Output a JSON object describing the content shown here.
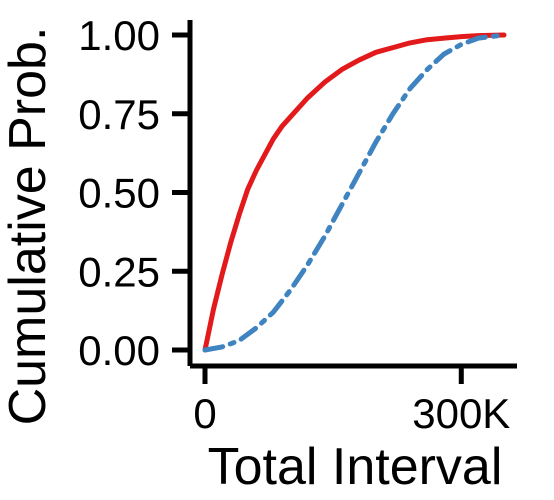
{
  "chart_data": {
    "type": "line",
    "title": "",
    "xlabel": "Total Interval",
    "ylabel": "Cumulative Prob.",
    "xlim": [
      0,
      350000
    ],
    "ylim": [
      0,
      1
    ],
    "x_ticks": [
      {
        "value": 0,
        "label": "0"
      },
      {
        "value": 300000,
        "label": "300K"
      }
    ],
    "y_ticks": [
      {
        "value": 0.0,
        "label": "0.00"
      },
      {
        "value": 0.25,
        "label": "0.25"
      },
      {
        "value": 0.5,
        "label": "0.50"
      },
      {
        "value": 0.75,
        "label": "0.75"
      },
      {
        "value": 1.0,
        "label": "1.00"
      }
    ],
    "grid": false,
    "legend": "none",
    "series": [
      {
        "color": "#e31a1c",
        "style": "solid",
        "points": [
          [
            0,
            0.0
          ],
          [
            10000,
            0.13
          ],
          [
            20000,
            0.24
          ],
          [
            30000,
            0.34
          ],
          [
            40000,
            0.43
          ],
          [
            50000,
            0.51
          ],
          [
            60000,
            0.57
          ],
          [
            70000,
            0.62
          ],
          [
            80000,
            0.67
          ],
          [
            90000,
            0.71
          ],
          [
            100000,
            0.74
          ],
          [
            120000,
            0.8
          ],
          [
            140000,
            0.85
          ],
          [
            160000,
            0.89
          ],
          [
            180000,
            0.92
          ],
          [
            200000,
            0.945
          ],
          [
            220000,
            0.96
          ],
          [
            240000,
            0.975
          ],
          [
            260000,
            0.985
          ],
          [
            280000,
            0.99
          ],
          [
            300000,
            0.995
          ],
          [
            320000,
            0.998
          ],
          [
            350000,
            1.0
          ]
        ]
      },
      {
        "color": "#3f84c0",
        "style": "dashed",
        "points": [
          [
            0,
            0.0
          ],
          [
            20000,
            0.01
          ],
          [
            40000,
            0.03
          ],
          [
            60000,
            0.07
          ],
          [
            80000,
            0.12
          ],
          [
            100000,
            0.19
          ],
          [
            120000,
            0.27
          ],
          [
            140000,
            0.36
          ],
          [
            160000,
            0.46
          ],
          [
            180000,
            0.56
          ],
          [
            200000,
            0.66
          ],
          [
            220000,
            0.75
          ],
          [
            240000,
            0.83
          ],
          [
            260000,
            0.89
          ],
          [
            280000,
            0.94
          ],
          [
            300000,
            0.97
          ],
          [
            320000,
            0.99
          ],
          [
            350000,
            1.0
          ]
        ]
      }
    ]
  }
}
